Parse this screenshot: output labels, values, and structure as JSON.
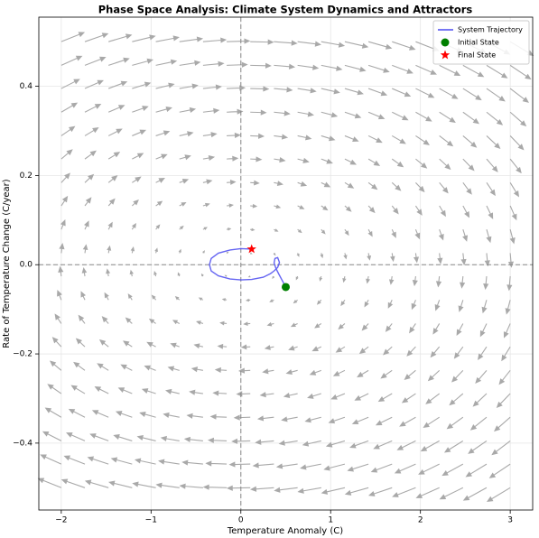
{
  "chart_data": {
    "type": "phase",
    "title": "Phase Space Analysis: Climate System Dynamics and Attractors",
    "x_label": "Temperature Anomaly (C)",
    "y_label": "Rate of Temperature Change (C/year)",
    "xlim": [
      -2.25,
      3.25
    ],
    "ylim": [
      -0.55,
      0.555
    ],
    "xticks": [
      {
        "value": -2,
        "label": "−2"
      },
      {
        "value": -1,
        "label": "−1"
      },
      0,
      1,
      2,
      3
    ],
    "yticks": [
      {
        "value": -0.4,
        "label": "−0.4"
      },
      {
        "value": -0.2,
        "label": "−0.2"
      },
      {
        "value": 0,
        "label": "0.0"
      },
      0.2,
      0.4
    ],
    "grid": true,
    "legend": "upper right",
    "reference_lines": {
      "x": 0,
      "y": 0
    },
    "quiver": {
      "color": "#a9a9a9",
      "x": [
        -2,
        -1.737,
        -1.474,
        -1.211,
        -0.947,
        -0.684,
        -0.421,
        -0.158,
        0.105,
        0.368,
        0.632,
        0.895,
        1.158,
        1.421,
        1.684,
        1.947,
        2.211,
        2.474,
        2.737,
        3
      ],
      "y": [
        -0.5,
        -0.447,
        -0.395,
        -0.342,
        -0.289,
        -0.237,
        -0.184,
        -0.132,
        -0.079,
        -0.026,
        0.026,
        0.079,
        0.132,
        0.184,
        0.237,
        0.289,
        0.342,
        0.395,
        0.447,
        0.5
      ],
      "u": [
        -0.5,
        -0.447,
        -0.395,
        -0.342,
        -0.289,
        -0.237,
        -0.184,
        -0.132,
        -0.079,
        -0.026,
        0.026,
        0.079,
        0.132,
        0.184,
        0.237,
        0.289,
        0.342,
        0.395,
        0.447,
        0.5
      ],
      "v": [
        0.2,
        0.174,
        0.147,
        0.121,
        0.095,
        0.068,
        0.042,
        0.016,
        -0.011,
        -0.037,
        -0.063,
        -0.089,
        -0.116,
        -0.142,
        -0.168,
        -0.195,
        -0.221,
        -0.247,
        -0.274,
        -0.3
      ]
    },
    "series": [
      {
        "name": "System Trajectory",
        "color": "#4a4af0",
        "x": [
          0.5,
          0.46,
          0.42,
          0.39,
          0.37,
          0.38,
          0.41,
          0.43,
          0.41,
          0.37,
          0.33,
          0.25,
          0.12,
          0,
          -0.12,
          -0.25,
          -0.33,
          -0.35,
          -0.33,
          -0.25,
          -0.12,
          0,
          0.12
        ],
        "y": [
          -0.05,
          -0.035,
          -0.02,
          -0.008,
          0.004,
          0.014,
          0.016,
          0.005,
          -0.006,
          -0.014,
          -0.02,
          -0.028,
          -0.033,
          -0.034,
          -0.032,
          -0.025,
          -0.014,
          0,
          0.014,
          0.026,
          0.033,
          0.036,
          0.035
        ]
      },
      {
        "name": "Initial State",
        "color": "#008000",
        "marker": "circle",
        "x": [
          0.5
        ],
        "y": [
          -0.05
        ]
      },
      {
        "name": "Final State",
        "color": "#ff0000",
        "marker": "star",
        "x": [
          0.12
        ],
        "y": [
          0.035
        ]
      }
    ]
  }
}
